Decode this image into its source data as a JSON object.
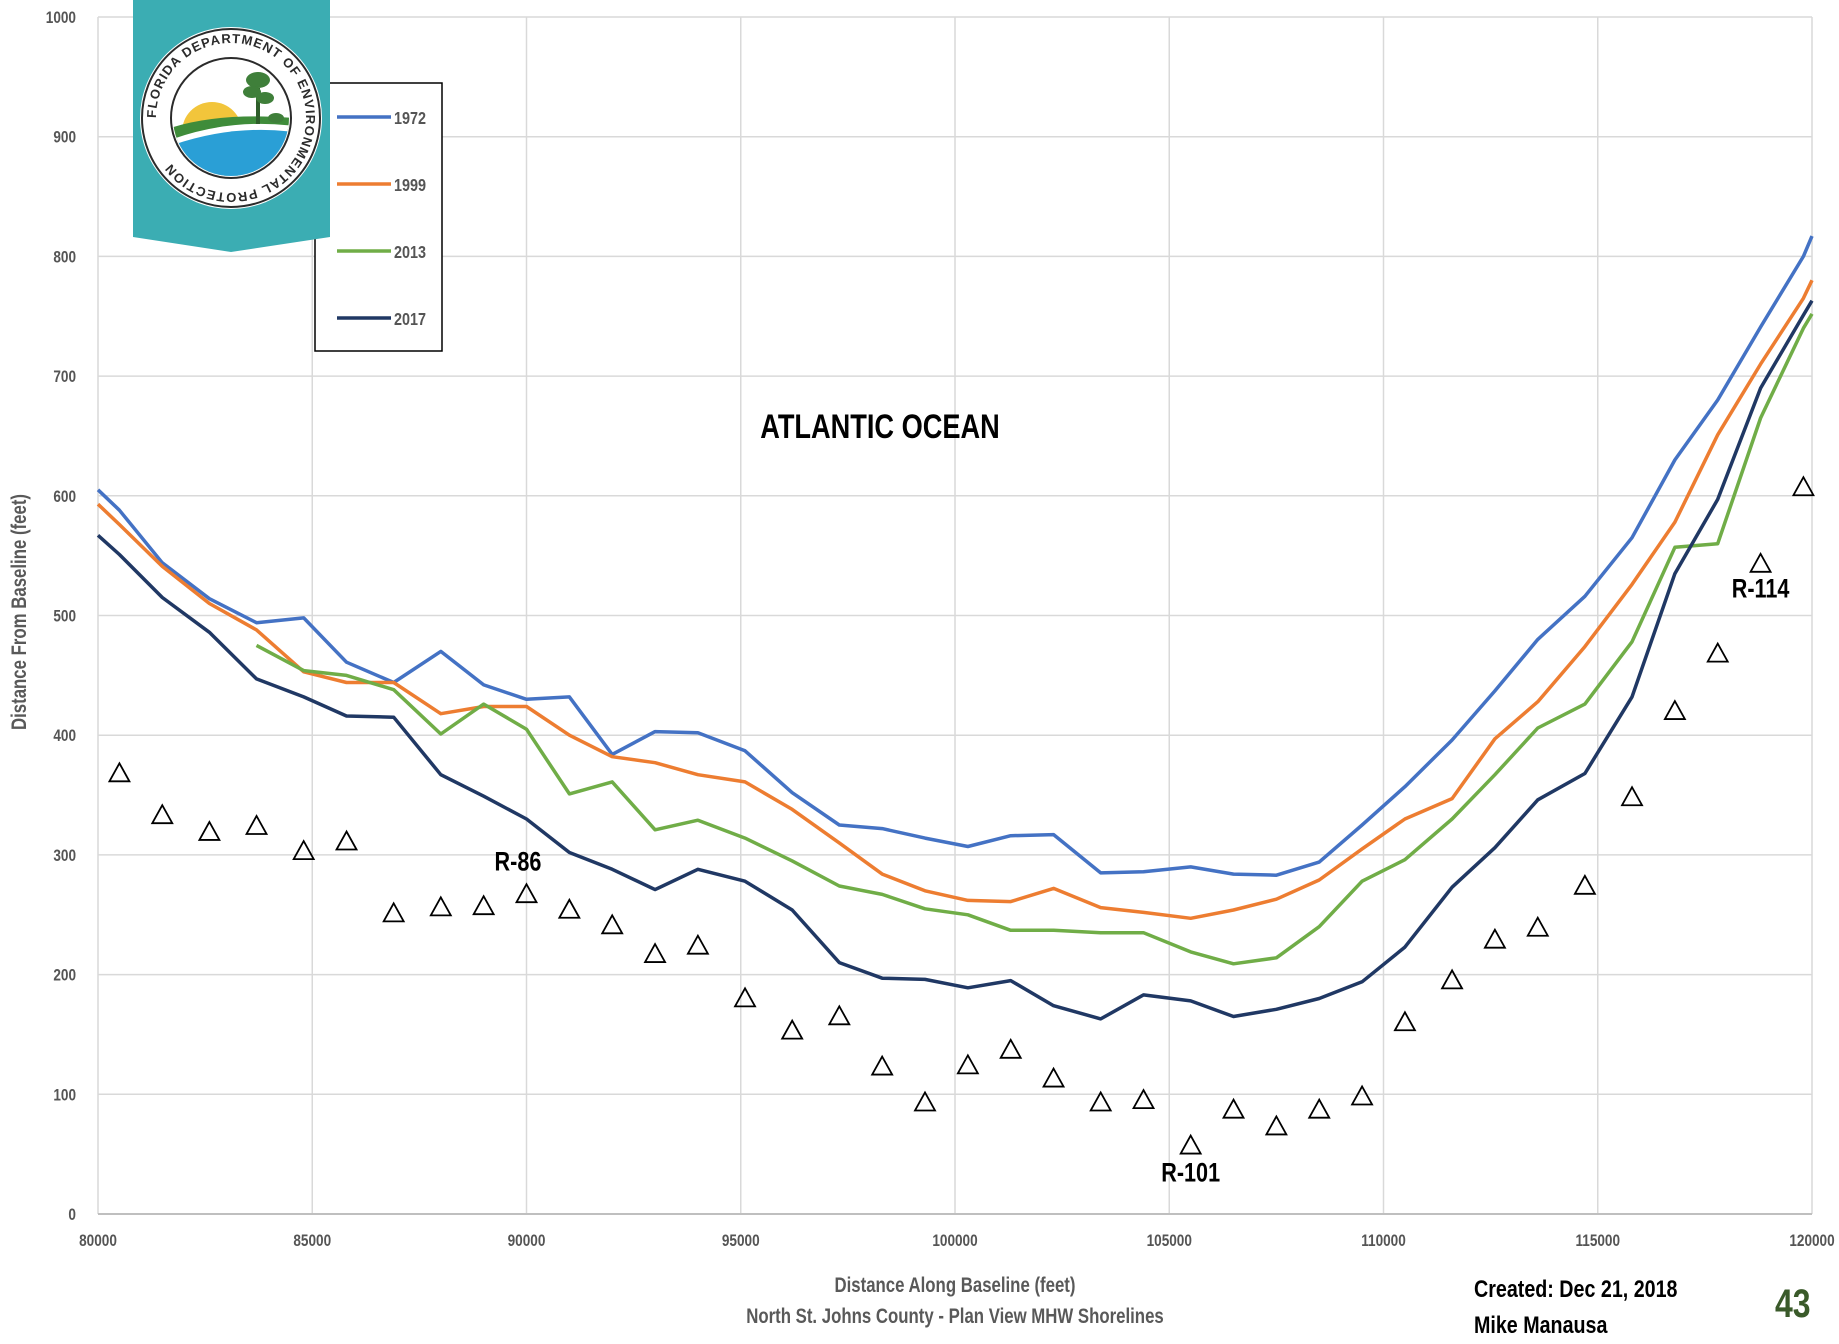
{
  "chart_data": {
    "type": "line",
    "title": "ATLANTIC OCEAN",
    "xlabel": "Distance Along Baseline (feet)",
    "subtitle": "North St. Johns County - Plan View MHW Shorelines",
    "ylabel": "Distance From Baseline (feet)",
    "xlim": [
      80000,
      120000
    ],
    "ylim": [
      0,
      1000
    ],
    "xticks": [
      80000,
      85000,
      90000,
      95000,
      100000,
      105000,
      110000,
      115000,
      120000
    ],
    "yticks": [
      0,
      100,
      200,
      300,
      400,
      500,
      600,
      700,
      800,
      900,
      1000
    ],
    "grid": true,
    "legend_position": "top-left",
    "series": [
      {
        "name": "1972",
        "color": "#4472c4",
        "x": [
          80000,
          80500,
          81500,
          82600,
          83700,
          84800,
          85800,
          86900,
          88000,
          89000,
          90000,
          91000,
          92000,
          93000,
          94000,
          95100,
          96200,
          97300,
          98300,
          99300,
          100300,
          101300,
          102300,
          103400,
          104400,
          105500,
          106500,
          107500,
          108500,
          109500,
          110500,
          111600,
          112600,
          113600,
          114700,
          115800,
          116800,
          117800,
          118800,
          119800,
          120000
        ],
        "y": [
          605,
          588,
          544,
          514,
          494,
          498,
          461,
          444,
          470,
          442,
          430,
          432,
          384,
          403,
          402,
          387,
          352,
          325,
          322,
          314,
          307,
          316,
          317,
          285,
          286,
          290,
          284,
          283,
          294,
          325,
          357,
          396,
          437,
          480,
          516,
          565,
          630,
          680,
          741,
          800,
          817
        ]
      },
      {
        "name": "1999",
        "color": "#ed7d31",
        "x": [
          80000,
          80500,
          81500,
          82600,
          83700,
          84800,
          85800,
          86900,
          88000,
          89000,
          90000,
          91000,
          92000,
          93000,
          94000,
          95100,
          96200,
          97300,
          98300,
          99300,
          100300,
          101300,
          102300,
          103400,
          104400,
          105500,
          106500,
          107500,
          108500,
          109500,
          110500,
          111600,
          112600,
          113600,
          114700,
          115800,
          116800,
          117800,
          118800,
          119800,
          120000
        ],
        "y": [
          593,
          576,
          541,
          510,
          488,
          453,
          444,
          444,
          418,
          424,
          424,
          400,
          382,
          377,
          367,
          361,
          338,
          310,
          284,
          270,
          262,
          261,
          272,
          256,
          252,
          247,
          254,
          263,
          279,
          305,
          330,
          347,
          397,
          428,
          474,
          526,
          578,
          651,
          710,
          765,
          780
        ]
      },
      {
        "name": "2013",
        "color": "#70ad47",
        "x": [
          83700,
          84800,
          85800,
          86900,
          88000,
          89000,
          90000,
          91000,
          92000,
          93000,
          94000,
          95100,
          96200,
          97300,
          98300,
          99300,
          100300,
          101300,
          102300,
          103400,
          104400,
          105500,
          106500,
          107500,
          108500,
          109500,
          110500,
          111600,
          112600,
          113600,
          114700,
          115800,
          116800,
          117800,
          118800,
          119800,
          120000
        ],
        "y": [
          475,
          454,
          450,
          438,
          401,
          426,
          405,
          351,
          361,
          321,
          329,
          314,
          295,
          274,
          267,
          255,
          250,
          237,
          237,
          235,
          235,
          219,
          209,
          214,
          240,
          278,
          296,
          330,
          367,
          406,
          426,
          478,
          557,
          560,
          665,
          740,
          752
        ]
      },
      {
        "name": "2017",
        "color": "#203864",
        "x": [
          80000,
          80500,
          81500,
          82600,
          83700,
          84800,
          85800,
          86900,
          88000,
          89000,
          90000,
          91000,
          92000,
          93000,
          94000,
          95100,
          96200,
          97300,
          98300,
          99300,
          100300,
          101300,
          102300,
          103400,
          104400,
          105500,
          106500,
          107500,
          108500,
          109500,
          110500,
          111600,
          112600,
          113600,
          114700,
          115800,
          116800,
          117800,
          118800,
          119800,
          120000
        ],
        "y": [
          567,
          551,
          515,
          486,
          447,
          432,
          416,
          415,
          367,
          349,
          330,
          302,
          288,
          271,
          288,
          278,
          254,
          210,
          197,
          196,
          189,
          195,
          174,
          163,
          183,
          178,
          165,
          171,
          180,
          194,
          223,
          273,
          306,
          346,
          368,
          432,
          535,
          597,
          690,
          751,
          763
        ]
      }
    ],
    "monuments": {
      "marker": "triangle",
      "x": [
        80500,
        81500,
        82600,
        83700,
        84800,
        85800,
        86900,
        88000,
        89000,
        90000,
        91000,
        92000,
        93000,
        94000,
        95100,
        96200,
        97300,
        98300,
        99300,
        100300,
        101300,
        102300,
        103400,
        104400,
        105500,
        106500,
        107500,
        108500,
        109500,
        110500,
        111600,
        112600,
        113600,
        114700,
        115800,
        116800,
        117800,
        118800,
        119800
      ],
      "y": [
        369,
        334,
        320,
        325,
        304,
        312,
        252,
        257,
        258,
        268,
        255,
        242,
        218,
        225,
        181,
        154,
        166,
        124,
        94,
        125,
        138,
        114,
        94,
        96,
        58,
        88,
        74,
        88,
        99,
        161,
        196,
        230,
        240,
        275,
        349,
        421,
        469,
        544,
        608
      ]
    },
    "annotations": [
      {
        "text": "R-86",
        "x": 89800,
        "y": 287
      },
      {
        "text": "R-101",
        "x": 105500,
        "y": 27
      },
      {
        "text": "R-114",
        "x": 118800,
        "y": 515
      }
    ]
  },
  "footer": {
    "created": "Created: Dec 21, 2018",
    "author": "Mike Manausa",
    "page_number": "43"
  },
  "logo": {
    "text": "FLORIDA DEPARTMENT OF ENVIRONMENTAL PROTECTION",
    "banner_color": "#3badb3",
    "sun_color": "#f2c53b",
    "water_color": "#2a9fd6",
    "land_color": "#3f8c3a"
  }
}
